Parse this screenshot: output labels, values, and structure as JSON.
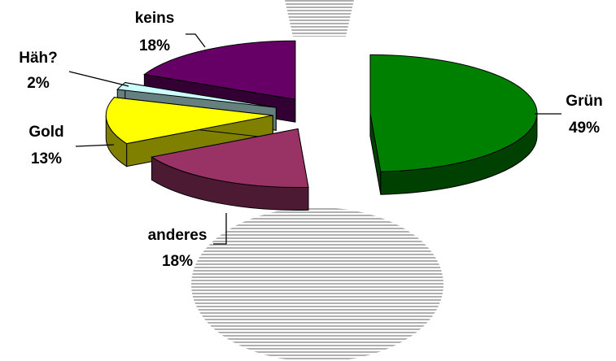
{
  "chart_data": {
    "type": "pie",
    "categories": [
      "Grün",
      "anderes",
      "Gold",
      "Häh?",
      "keins"
    ],
    "values": [
      49,
      18,
      13,
      2,
      18
    ],
    "value_labels": [
      "49%",
      "18%",
      "13%",
      "2%",
      "18%"
    ],
    "colors": [
      "#008000",
      "#993366",
      "#ffff00",
      "#ccffff",
      "#660066"
    ]
  }
}
